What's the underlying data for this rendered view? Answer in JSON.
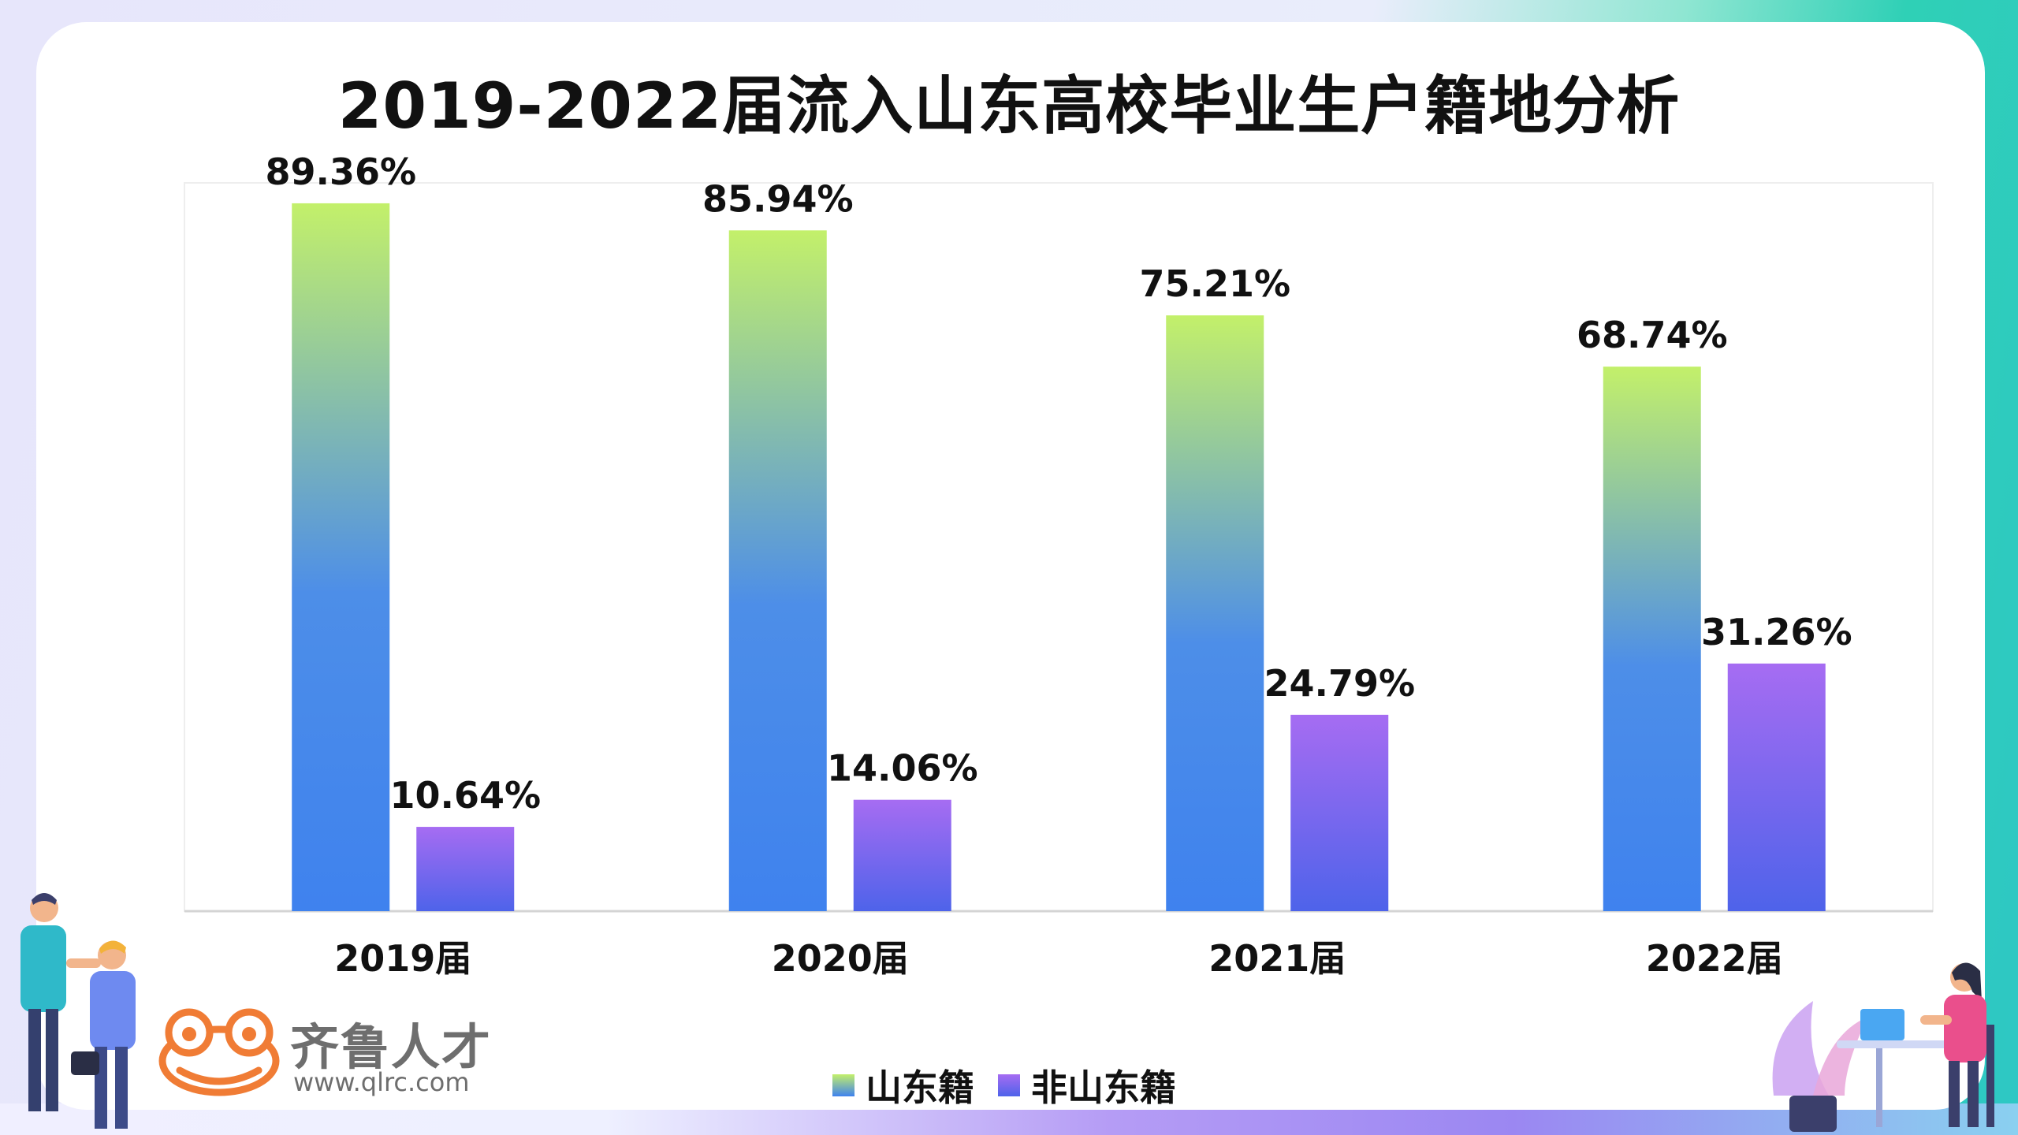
{
  "title": "2019-2022届流入山东高校毕业生户籍地分析",
  "chart_data": {
    "type": "bar",
    "categories": [
      "2019届",
      "2020届",
      "2021届",
      "2022届"
    ],
    "series": [
      {
        "name": "山东籍",
        "values": [
          89.36,
          85.94,
          75.21,
          68.74
        ],
        "labels": [
          "89.36%",
          "85.94%",
          "75.21%",
          "68.74%"
        ]
      },
      {
        "name": "非山东籍",
        "values": [
          10.64,
          14.06,
          24.79,
          31.26
        ],
        "labels": [
          "10.64%",
          "14.06%",
          "24.79%",
          "31.26%"
        ]
      }
    ],
    "ylim": [
      0,
      100
    ],
    "unit": "%",
    "grid": false,
    "legend_position": "bottom"
  },
  "legend": {
    "items": [
      "山东籍",
      "非山东籍"
    ]
  },
  "logo": {
    "name": "齐鲁人才",
    "url": "www.qlrc.com"
  },
  "colors": {
    "series1_top": "#c3f06a",
    "series1_bottom": "#3f82ee",
    "series2_top": "#a66cf2",
    "series2_bottom": "#4e63ea"
  },
  "icons": {
    "logo": "frog-face-icon",
    "decor_left": "handshake-people-illustration",
    "decor_right": "woman-at-laptop-illustration"
  }
}
